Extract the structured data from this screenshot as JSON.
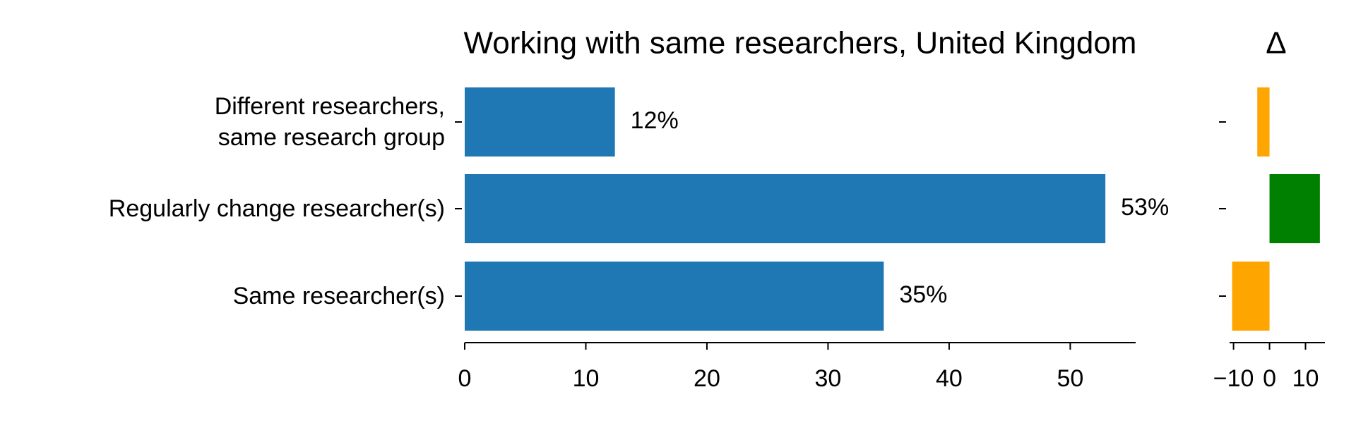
{
  "chart_data": [
    {
      "type": "barh",
      "title": "Working with same researchers, United Kingdom",
      "categories": [
        "Different researchers,\nsame research group",
        "Regularly change researcher(s)",
        "Same researcher(s)"
      ],
      "values": [
        12.4,
        52.9,
        34.6
      ],
      "value_labels": [
        "12%",
        "53%",
        "35%"
      ],
      "color": "#1f77b4",
      "xlim": [
        0,
        55.4
      ],
      "xticks": [
        0,
        10,
        20,
        30,
        40,
        50
      ]
    },
    {
      "type": "barh",
      "title": "Δ",
      "values": [
        -3.4,
        14,
        -10.4
      ],
      "colors": [
        "#ffa500",
        "#008000",
        "#ffa500"
      ],
      "xlim": [
        -11.1,
        15.4
      ],
      "xticks": [
        {
          "value": -10,
          "label": "−10"
        },
        0,
        10
      ]
    }
  ]
}
